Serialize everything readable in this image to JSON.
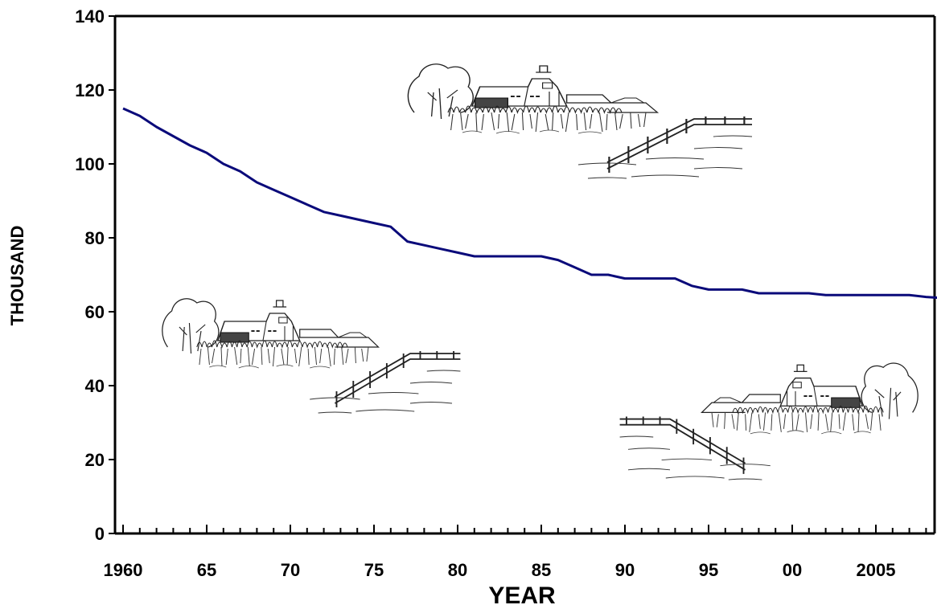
{
  "chart_data": {
    "type": "line",
    "title": "",
    "xlabel": "YEAR",
    "ylabel": "THOUSAND",
    "xlim": [
      1960,
      2009
    ],
    "ylim": [
      0,
      140
    ],
    "y_ticks": [
      0,
      20,
      40,
      60,
      80,
      100,
      120,
      140
    ],
    "x_ticks": [
      {
        "value": 1960,
        "label": "1960"
      },
      {
        "value": 1965,
        "label": "65"
      },
      {
        "value": 1970,
        "label": "70"
      },
      {
        "value": 1975,
        "label": "75"
      },
      {
        "value": 1980,
        "label": "80"
      },
      {
        "value": 1985,
        "label": "85"
      },
      {
        "value": 1990,
        "label": "90"
      },
      {
        "value": 1995,
        "label": "95"
      },
      {
        "value": 2000,
        "label": "00"
      },
      {
        "value": 2005,
        "label": "2005"
      }
    ],
    "grid": false,
    "series": [
      {
        "color": "#0a0a7a",
        "x": [
          1960,
          1961,
          1962,
          1963,
          1964,
          1965,
          1966,
          1967,
          1968,
          1969,
          1970,
          1971,
          1972,
          1973,
          1974,
          1975,
          1976,
          1977,
          1978,
          1979,
          1980,
          1981,
          1982,
          1983,
          1984,
          1985,
          1986,
          1987,
          1988,
          1989,
          1990,
          1991,
          1992,
          1993,
          1994,
          1995,
          1996,
          1997,
          1998,
          1999,
          2000,
          2001,
          2002,
          2003,
          2004,
          2005,
          2006,
          2007,
          2008,
          2009
        ],
        "y": [
          115,
          113,
          110,
          107.5,
          105,
          103,
          100,
          98,
          95,
          93,
          91,
          89,
          87,
          86,
          85,
          84,
          83,
          79,
          78,
          77,
          76,
          75,
          75,
          75,
          75,
          75,
          74,
          72,
          70,
          70,
          69,
          69,
          69,
          69,
          67,
          66,
          66,
          66,
          65,
          65,
          65,
          65,
          64.5,
          64.5,
          64.5,
          64.5,
          64.5,
          64.5,
          64,
          63.7
        ]
      }
    ]
  },
  "illustrations": [
    {
      "name": "farm-illustration-top",
      "icon": "farm-barn-icon"
    },
    {
      "name": "farm-illustration-middle",
      "icon": "farm-barn-icon"
    },
    {
      "name": "farm-illustration-bottom",
      "icon": "farm-barn-icon"
    }
  ]
}
